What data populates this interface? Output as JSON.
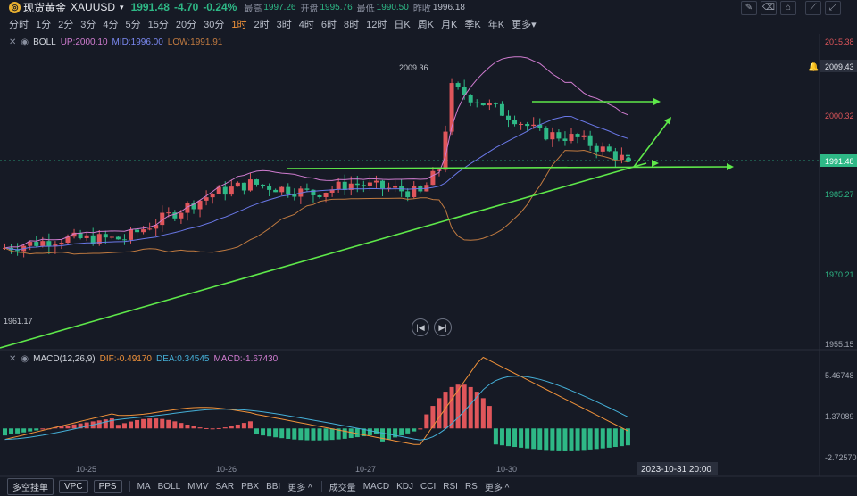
{
  "header": {
    "title": "现货黄金",
    "symbol": "XAUUSD",
    "caret": "▾",
    "price": "1991.48",
    "change": "-4.70",
    "change_pct": "-0.24%",
    "high_label": "最高",
    "high": "1997.26",
    "open_label": "开盘",
    "open": "1995.76",
    "low_label": "最低",
    "low": "1990.50",
    "prev_label": "昨收",
    "prev": "1996.18"
  },
  "timeframes": [
    "分时",
    "1分",
    "2分",
    "3分",
    "4分",
    "5分",
    "15分",
    "20分",
    "30分",
    "1时",
    "2时",
    "3时",
    "4时",
    "6时",
    "8时",
    "12时",
    "日K",
    "周K",
    "月K",
    "季K",
    "年K",
    "更多▾"
  ],
  "active_tf_index": 9,
  "boll": {
    "name": "BOLL",
    "up": "UP:2000.10",
    "mid": "MID:1996.00",
    "low": "LOW:1991.91"
  },
  "macd": {
    "name": "MACD(12,26,9)",
    "dif": "DIF:-0.49170",
    "dea": "DEA:0.34545",
    "macd": "MACD:-1.67430"
  },
  "price_axis": [
    "2015.38",
    "2009.43",
    "2000.32",
    "1991.48",
    "1985.27",
    "1970.21",
    "1955.15"
  ],
  "macd_axis": [
    "5.46748",
    "1.37089",
    "-2.72570"
  ],
  "annotations": {
    "high_mark": "2009.36",
    "low_mark": "1961.17"
  },
  "dates": [
    "10-25",
    "10-26",
    "10-27",
    "10-30"
  ],
  "crosshair_time": "2023-10-31 20:00",
  "bottom": {
    "buttons": [
      "多空挂单",
      "VPC",
      "PPS"
    ],
    "indicators1": [
      "MA",
      "BOLL",
      "MMV",
      "SAR",
      "PBX",
      "BBI",
      "更多 ^"
    ],
    "indicators2": [
      "成交量",
      "MACD",
      "KDJ",
      "CCI",
      "RSI",
      "RS",
      "更多 ^"
    ]
  },
  "colors": {
    "up": "#e0565b",
    "down": "#2eb886",
    "bg": "#161a25",
    "mid": "#6a78e8",
    "upper": "#d07cd0",
    "lower": "#c07a40",
    "trend": "#5ee84a"
  }
}
